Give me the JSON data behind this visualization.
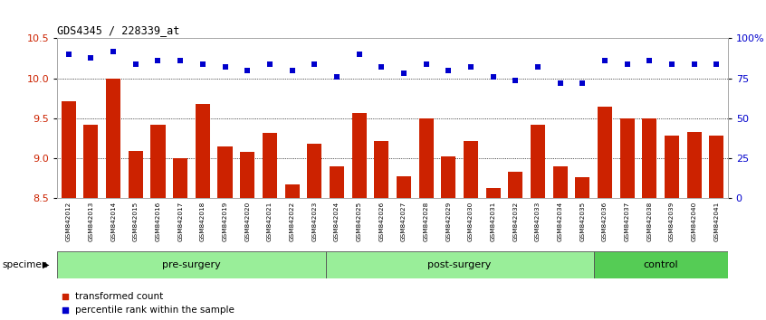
{
  "title": "GDS4345 / 228339_at",
  "samples": [
    "GSM842012",
    "GSM842013",
    "GSM842014",
    "GSM842015",
    "GSM842016",
    "GSM842017",
    "GSM842018",
    "GSM842019",
    "GSM842020",
    "GSM842021",
    "GSM842022",
    "GSM842023",
    "GSM842024",
    "GSM842025",
    "GSM842026",
    "GSM842027",
    "GSM842028",
    "GSM842029",
    "GSM842030",
    "GSM842031",
    "GSM842032",
    "GSM842033",
    "GSM842034",
    "GSM842035",
    "GSM842036",
    "GSM842037",
    "GSM842038",
    "GSM842039",
    "GSM842040",
    "GSM842041"
  ],
  "bar_values": [
    9.72,
    9.42,
    10.0,
    9.09,
    9.42,
    9.0,
    9.68,
    9.15,
    9.08,
    9.32,
    8.67,
    9.18,
    8.9,
    9.57,
    9.22,
    8.78,
    9.5,
    9.02,
    9.22,
    8.63,
    8.83,
    9.42,
    8.9,
    8.77,
    9.65,
    9.5,
    9.5,
    9.28,
    9.33,
    9.28
  ],
  "percentile_values": [
    90,
    88,
    92,
    84,
    86,
    86,
    84,
    82,
    80,
    84,
    80,
    84,
    76,
    90,
    82,
    78,
    84,
    80,
    82,
    76,
    74,
    82,
    72,
    72,
    86,
    84,
    86,
    84,
    84,
    84
  ],
  "bar_color": "#cc2200",
  "dot_color": "#0000cc",
  "ylim_left": [
    8.5,
    10.5
  ],
  "ylim_right": [
    0,
    100
  ],
  "yticks_left": [
    8.5,
    9.0,
    9.5,
    10.0,
    10.5
  ],
  "yticks_right": [
    0,
    25,
    50,
    75,
    100
  ],
  "ytick_labels_right": [
    "0",
    "25",
    "50",
    "75",
    "100%"
  ],
  "groups": [
    {
      "label": "pre-surgery",
      "start": 0,
      "end": 12,
      "color": "#99ee99"
    },
    {
      "label": "post-surgery",
      "start": 12,
      "end": 24,
      "color": "#99ee99"
    },
    {
      "label": "control",
      "start": 24,
      "end": 30,
      "color": "#55cc55"
    }
  ],
  "legend_items": [
    {
      "label": "transformed count",
      "color": "#cc2200"
    },
    {
      "label": "percentile rank within the sample",
      "color": "#0000cc"
    }
  ],
  "specimen_label": "specimen",
  "background_color": "#ffffff",
  "grid_color": "#000000",
  "bar_width": 0.65,
  "xtick_bg_color": "#cccccc"
}
